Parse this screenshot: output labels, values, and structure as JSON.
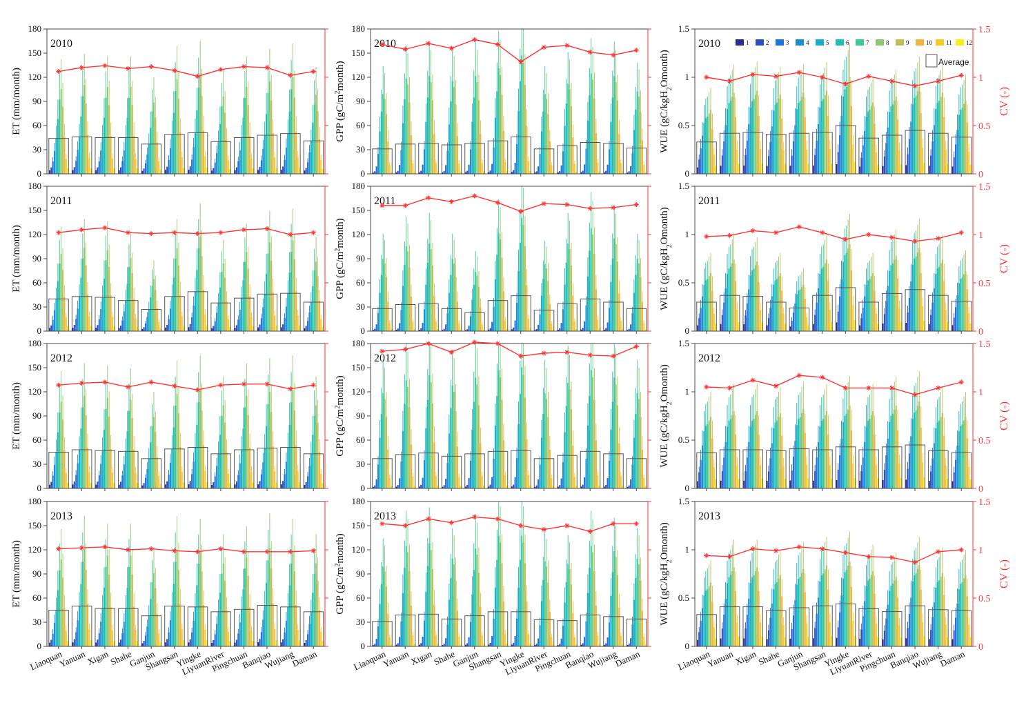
{
  "chart_data": {
    "type": "bar",
    "description_stations": [
      "Liaoquan",
      "Yanuan",
      "Xigan",
      "Shahe",
      "Ganjun",
      "Shangsan",
      "Yingke",
      "LiyuanRiver",
      "Pingchuan",
      "Banqiao",
      "Wujiang",
      "Daman"
    ],
    "years": [
      "2010",
      "2011",
      "2012",
      "2013"
    ],
    "months": [
      "1",
      "2",
      "3",
      "4",
      "5",
      "6",
      "7",
      "8",
      "9",
      "10",
      "11",
      "12"
    ],
    "month_colors": [
      "#2b2a8c",
      "#2e4fc4",
      "#1f73d8",
      "#1b8fd1",
      "#1aaec8",
      "#1bbfb4",
      "#3cc79a",
      "#8cc870",
      "#bdbf5a",
      "#f2b43c",
      "#f4cc2a",
      "#f8ee1a"
    ],
    "average_label": "Average",
    "cv_label": "CV (-)",
    "cv_color": "#ff3333",
    "cv_range": [
      0,
      1.5
    ],
    "cv_ticks": [
      "0",
      "0.5",
      "1",
      "1.5"
    ],
    "panels": {
      "ET": {
        "ylabel": "ET (mm/month)",
        "ylim": [
          0,
          180
        ],
        "ticks": [
          "0",
          "30",
          "60",
          "90",
          "120",
          "150",
          "180"
        ],
        "profile": [
          0.1,
          0.18,
          0.35,
          0.65,
          1.0,
          1.55,
          2.1,
          2.4,
          1.9,
          1.05,
          0.42,
          0.15
        ],
        "average": {
          "2010": [
            44,
            46,
            45,
            45,
            37,
            49,
            51,
            40,
            45,
            48,
            50,
            41
          ],
          "2011": [
            40,
            43,
            42,
            38,
            27,
            43,
            49,
            35,
            41,
            46,
            47,
            36
          ],
          "2012": [
            45,
            48,
            47,
            46,
            37,
            49,
            51,
            43,
            48,
            50,
            51,
            43
          ],
          "2013": [
            45,
            50,
            47,
            47,
            38,
            50,
            49,
            43,
            46,
            51,
            49,
            43
          ]
        },
        "cv": {
          "2010": [
            1.06,
            1.1,
            1.12,
            1.09,
            1.11,
            1.07,
            1.01,
            1.08,
            1.11,
            1.1,
            1.02,
            1.06
          ],
          "2011": [
            1.02,
            1.05,
            1.07,
            1.02,
            1.01,
            1.02,
            1.01,
            1.02,
            1.05,
            1.06,
            1.0,
            1.02
          ],
          "2012": [
            1.07,
            1.09,
            1.1,
            1.05,
            1.1,
            1.06,
            1.02,
            1.07,
            1.08,
            1.08,
            1.03,
            1.07
          ],
          "2013": [
            1.01,
            1.02,
            1.03,
            1.0,
            1.01,
            0.99,
            0.98,
            1.01,
            0.98,
            0.98,
            0.98,
            0.99
          ]
        }
      },
      "GPP": {
        "ylabel": "GPP (gC/m2month)",
        "ylim": [
          0,
          180
        ],
        "ticks": [
          "0",
          "30",
          "60",
          "90",
          "120",
          "150",
          "180"
        ],
        "profile": [
          0.05,
          0.1,
          0.3,
          0.8,
          1.7,
          2.5,
          3.2,
          3.0,
          2.4,
          1.3,
          0.35,
          0.08
        ],
        "average": {
          "2010": [
            31,
            37,
            38,
            36,
            38,
            41,
            46,
            31,
            35,
            39,
            38,
            32
          ],
          "2011": [
            28,
            33,
            34,
            28,
            23,
            38,
            44,
            26,
            34,
            40,
            36,
            28
          ],
          "2012": [
            37,
            42,
            44,
            40,
            43,
            46,
            47,
            37,
            41,
            46,
            43,
            37
          ],
          "2013": [
            31,
            39,
            40,
            34,
            38,
            43,
            43,
            33,
            32,
            39,
            37,
            34
          ]
        },
        "cv": {
          "2010": [
            1.34,
            1.29,
            1.35,
            1.3,
            1.39,
            1.34,
            1.16,
            1.31,
            1.33,
            1.26,
            1.23,
            1.28
          ],
          "2011": [
            1.3,
            1.3,
            1.38,
            1.34,
            1.4,
            1.33,
            1.24,
            1.32,
            1.31,
            1.27,
            1.28,
            1.31
          ],
          "2012": [
            1.42,
            1.44,
            1.5,
            1.41,
            1.52,
            1.5,
            1.37,
            1.4,
            1.41,
            1.38,
            1.37,
            1.47
          ],
          "2013": [
            1.27,
            1.25,
            1.32,
            1.28,
            1.34,
            1.32,
            1.25,
            1.21,
            1.25,
            1.19,
            1.27,
            1.27
          ]
        }
      },
      "WUE": {
        "ylabel": "WUE (gC/kgH2Omonth)",
        "ylim": [
          0,
          1.5
        ],
        "ticks": [
          "0",
          "0.5",
          "1",
          "1.5"
        ],
        "profile": [
          0.2,
          0.45,
          0.8,
          1.2,
          1.6,
          1.75,
          1.8,
          1.9,
          2.0,
          1.4,
          0.6,
          0.25
        ],
        "average": {
          "2010": [
            0.33,
            0.42,
            0.43,
            0.41,
            0.42,
            0.43,
            0.5,
            0.37,
            0.4,
            0.45,
            0.42,
            0.38
          ],
          "2011": [
            0.3,
            0.37,
            0.36,
            0.3,
            0.24,
            0.37,
            0.45,
            0.3,
            0.39,
            0.43,
            0.37,
            0.31
          ],
          "2012": [
            0.37,
            0.4,
            0.4,
            0.39,
            0.41,
            0.4,
            0.43,
            0.4,
            0.43,
            0.45,
            0.39,
            0.37
          ],
          "2013": [
            0.33,
            0.41,
            0.41,
            0.37,
            0.4,
            0.42,
            0.44,
            0.39,
            0.36,
            0.42,
            0.38,
            0.37
          ]
        },
        "cv": {
          "2010": [
            1.0,
            0.96,
            1.03,
            1.01,
            1.05,
            1.0,
            0.93,
            1.01,
            0.96,
            0.91,
            0.96,
            1.02
          ],
          "2011": [
            0.98,
            0.99,
            1.04,
            1.02,
            1.08,
            1.02,
            0.95,
            1.0,
            0.97,
            0.93,
            0.96,
            1.02
          ],
          "2012": [
            1.05,
            1.04,
            1.12,
            1.06,
            1.17,
            1.15,
            1.04,
            1.04,
            1.04,
            0.97,
            1.04,
            1.1
          ],
          "2013": [
            0.94,
            0.93,
            1.01,
            0.99,
            1.03,
            1.01,
            0.97,
            0.93,
            0.92,
            0.87,
            0.98,
            1.0
          ]
        }
      }
    }
  }
}
